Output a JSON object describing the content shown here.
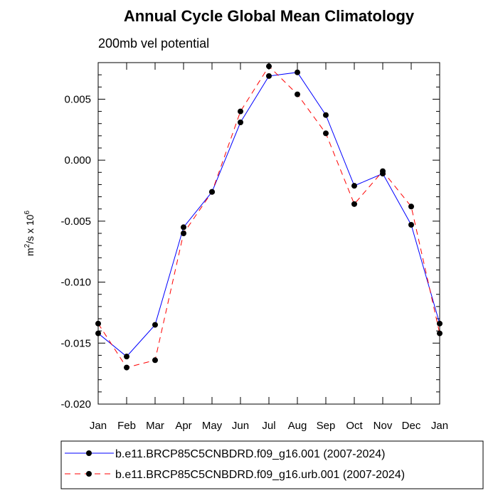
{
  "chart_data": {
    "type": "line",
    "title": "Annual Cycle Global Mean Climatology",
    "subtitle": "200mb vel potential",
    "xlabel": "",
    "ylabel_base": "m",
    "ylabel_sup1": "2",
    "ylabel_mid": "/s x 10",
    "ylabel_sup2": "6",
    "categories": [
      "Jan",
      "Feb",
      "Mar",
      "Apr",
      "May",
      "Jun",
      "Jul",
      "Aug",
      "Sep",
      "Oct",
      "Nov",
      "Dec",
      "Jan"
    ],
    "ylim": [
      -0.02,
      0.008
    ],
    "yticks": [
      -0.02,
      -0.015,
      -0.01,
      -0.005,
      0.0,
      0.005
    ],
    "ytick_labels": [
      "-0.020",
      "-0.015",
      "-0.010",
      "-0.005",
      "0.000",
      "0.005"
    ],
    "series": [
      {
        "name": "b.e11.BRCP85C5CNBDRD.f09_g16.001 (2007-2024)",
        "color": "#0000ff",
        "dash": "solid",
        "values": [
          -0.0142,
          -0.0161,
          -0.0135,
          -0.0055,
          -0.0026,
          0.0031,
          0.0069,
          0.0072,
          0.0037,
          -0.0021,
          -0.0011,
          -0.0053,
          -0.0134
        ]
      },
      {
        "name": "b.e11.BRCP85C5CNBDRD.f09_g16.urb.001 (2007-2024)",
        "color": "#ff0000",
        "dash": "dashed",
        "values": [
          -0.0134,
          -0.017,
          -0.0164,
          -0.006,
          -0.0026,
          0.004,
          0.0077,
          0.0054,
          0.0022,
          -0.0036,
          -0.0009,
          -0.0038,
          -0.0142
        ]
      }
    ],
    "legend_position": "bottom"
  }
}
